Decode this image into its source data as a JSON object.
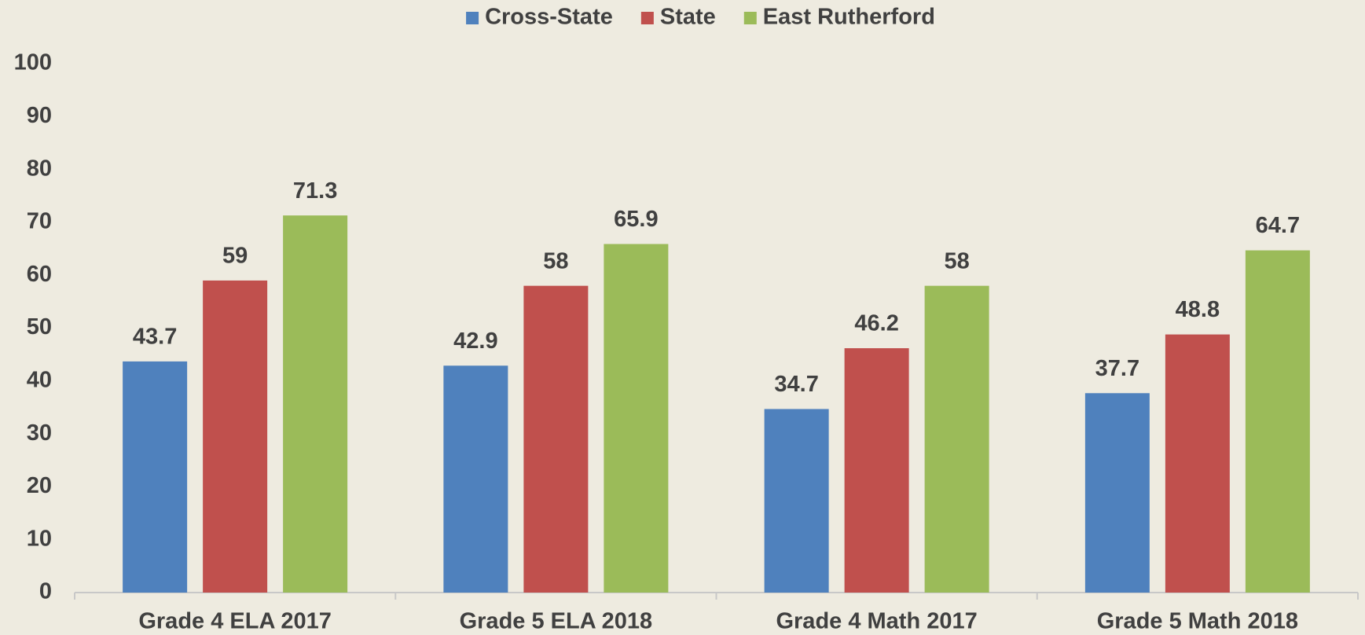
{
  "chart_data": {
    "type": "bar",
    "categories": [
      "Grade 4 ELA 2017",
      "Grade 5 ELA 2018",
      "Grade 4 Math 2017",
      "Grade 5 Math 2018"
    ],
    "series": [
      {
        "name": "Cross-State",
        "color": "#4f81bd",
        "values": [
          43.7,
          42.9,
          34.7,
          37.7
        ]
      },
      {
        "name": "State",
        "color": "#c0504d",
        "values": [
          59,
          58,
          46.2,
          48.8
        ]
      },
      {
        "name": "East Rutherford",
        "color": "#9bbb59",
        "values": [
          71.3,
          65.9,
          58,
          64.7
        ]
      }
    ],
    "ylim": [
      0,
      100
    ],
    "yticks": [
      0,
      10,
      20,
      30,
      40,
      50,
      60,
      70,
      80,
      90,
      100
    ],
    "grid": false,
    "legend": "top"
  }
}
